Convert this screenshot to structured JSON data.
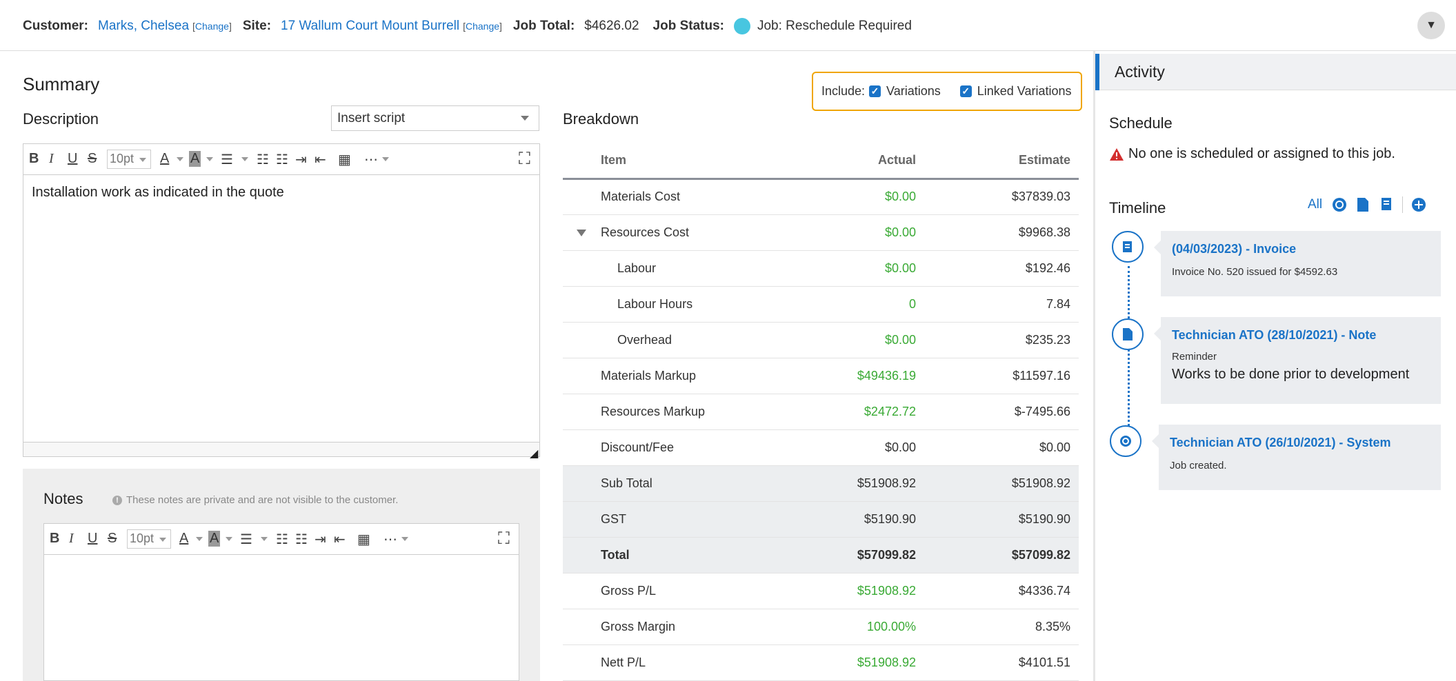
{
  "header": {
    "customer_label": "Customer:",
    "customer_name": "Marks, Chelsea",
    "change_link": "Change",
    "site_label": "Site:",
    "site_name": "17 Wallum Court Mount Burrell",
    "job_total_label": "Job Total:",
    "job_total": "$4626.02",
    "job_status_label": "Job Status:",
    "job_status": "Job: Reschedule Required",
    "status_color": "#48c6e0",
    "menu_icon": "chevron-down-icon"
  },
  "summary": {
    "title": "Summary",
    "description_label": "Description",
    "insert_script_value": "Insert script",
    "font_size": "10pt",
    "description_text": "Installation work as indicated in the quote"
  },
  "notes": {
    "title": "Notes",
    "hint": "These notes are private and are not visible to the customer.",
    "font_size": "10pt",
    "text": ""
  },
  "breakdown": {
    "title": "Breakdown",
    "include_label": "Include:",
    "variations_label": "Variations",
    "linked_variations_label": "Linked Variations",
    "columns": {
      "item": "Item",
      "actual": "Actual",
      "estimate": "Estimate"
    },
    "rows": [
      {
        "item": "Materials Cost",
        "actual": "$0.00",
        "estimate": "$37839.03"
      },
      {
        "item": "Resources Cost",
        "actual": "$0.00",
        "estimate": "$9968.38"
      },
      {
        "item": "Labour",
        "actual": "$0.00",
        "estimate": "$192.46"
      },
      {
        "item": "Labour Hours",
        "actual": "0",
        "estimate": "7.84"
      },
      {
        "item": "Overhead",
        "actual": "$0.00",
        "estimate": "$235.23"
      },
      {
        "item": "Materials Markup",
        "actual": "$49436.19",
        "estimate": "$11597.16"
      },
      {
        "item": "Resources Markup",
        "actual": "$2472.72",
        "estimate": "$-7495.66"
      },
      {
        "item": "Discount/Fee",
        "actual": "$0.00",
        "estimate": "$0.00"
      },
      {
        "item": "Sub Total",
        "actual": "$51908.92",
        "estimate": "$51908.92"
      },
      {
        "item": "GST",
        "actual": "$5190.90",
        "estimate": "$5190.90"
      },
      {
        "item": "Total",
        "actual": "$57099.82",
        "estimate": "$57099.82"
      },
      {
        "item": "Gross P/L",
        "actual": "$51908.92",
        "estimate": "$4336.74"
      },
      {
        "item": "Gross Margin",
        "actual": "100.00%",
        "estimate": "8.35%"
      },
      {
        "item": "Nett P/L",
        "actual": "$51908.92",
        "estimate": "$4101.51"
      }
    ],
    "positive_color": "#3aaa35"
  },
  "activity": {
    "title": "Activity",
    "schedule_title": "Schedule",
    "schedule_message": "No one is scheduled or assigned to this job.",
    "timeline_title": "Timeline",
    "filter_all": "All",
    "entries": [
      {
        "title": "(04/03/2023) - Invoice",
        "sub": "Invoice No. 520 issued for $4592.63",
        "body": "",
        "icon": "invoice-icon"
      },
      {
        "title": "Technician ATO (28/10/2021) - Note",
        "sub": "Reminder",
        "body": "Works to be done prior to development",
        "icon": "note-icon"
      },
      {
        "title": "Technician ATO (26/10/2021) - System",
        "sub": "Job created.",
        "body": "",
        "icon": "system-gear-icon"
      }
    ]
  }
}
